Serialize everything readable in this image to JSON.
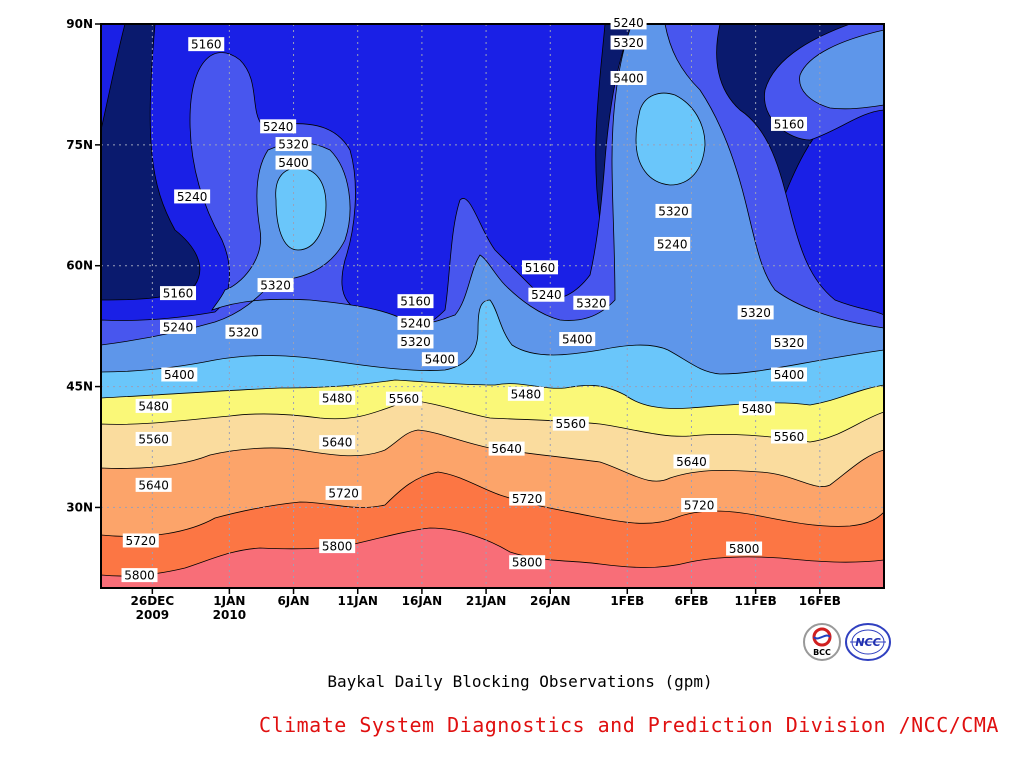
{
  "title": "Baykal Daily Blocking Observations (gpm)",
  "credit": "Climate System Diagnostics and Prediction Division /NCC/CMA",
  "logos": [
    {
      "name": "bcc-logo",
      "text": "BCC"
    },
    {
      "name": "ncc-logo",
      "text": "NCC"
    }
  ],
  "chart_data": {
    "type": "contour",
    "title": "Baykal Daily Blocking Observations (gpm)",
    "xlabel": "",
    "ylabel": "",
    "x_range_days": [
      0,
      61
    ],
    "y_range_lat": [
      20,
      90
    ],
    "grid": true,
    "x_ticks": [
      {
        "label": "26DEC",
        "sub": "2009",
        "day": 4
      },
      {
        "label": "1JAN",
        "sub": "2010",
        "day": 10
      },
      {
        "label": "6JAN",
        "sub": "",
        "day": 15
      },
      {
        "label": "11JAN",
        "sub": "",
        "day": 20
      },
      {
        "label": "16JAN",
        "sub": "",
        "day": 25
      },
      {
        "label": "21JAN",
        "sub": "",
        "day": 30
      },
      {
        "label": "26JAN",
        "sub": "",
        "day": 35
      },
      {
        "label": "1FEB",
        "sub": "",
        "day": 41
      },
      {
        "label": "6FEB",
        "sub": "",
        "day": 46
      },
      {
        "label": "11FEB",
        "sub": "",
        "day": 51
      },
      {
        "label": "16FEB",
        "sub": "",
        "day": 56
      }
    ],
    "y_ticks": [
      {
        "label": "30N",
        "lat": 30
      },
      {
        "label": "45N",
        "lat": 45
      },
      {
        "label": "60N",
        "lat": 60
      },
      {
        "label": "75N",
        "lat": 75
      },
      {
        "label": "90N",
        "lat": 90
      }
    ],
    "levels": [
      5160,
      5240,
      5320,
      5400,
      5480,
      5560,
      5640,
      5720,
      5800
    ],
    "colors": [
      "#0a1a6e",
      "#1a20e6",
      "#4856ee",
      "#5e96ea",
      "#6ac6fa",
      "#faf878",
      "#fadc9e",
      "#fca46a",
      "#fc7644",
      "#f86e78"
    ],
    "labels": [
      {
        "text": "5160",
        "day": 8.2,
        "lat": 87.5
      },
      {
        "text": "5240",
        "day": 13.8,
        "lat": 77.3
      },
      {
        "text": "5320",
        "day": 15,
        "lat": 75.1
      },
      {
        "text": "5400",
        "day": 15,
        "lat": 72.8
      },
      {
        "text": "5240",
        "day": 7.1,
        "lat": 68.6
      },
      {
        "text": "5320",
        "day": 13.6,
        "lat": 57.6
      },
      {
        "text": "5160",
        "day": 6,
        "lat": 56.6
      },
      {
        "text": "5240",
        "day": 6,
        "lat": 52.4
      },
      {
        "text": "5320",
        "day": 11.1,
        "lat": 51.8
      },
      {
        "text": "5400",
        "day": 6.1,
        "lat": 46.5
      },
      {
        "text": "5480",
        "day": 4.1,
        "lat": 42.6
      },
      {
        "text": "5560",
        "day": 4.1,
        "lat": 38.5
      },
      {
        "text": "5640",
        "day": 4.1,
        "lat": 32.8
      },
      {
        "text": "5720",
        "day": 3.1,
        "lat": 25.9
      },
      {
        "text": "5800",
        "day": 3,
        "lat": 21.6
      },
      {
        "text": "5160",
        "day": 24.5,
        "lat": 55.6
      },
      {
        "text": "5240",
        "day": 24.5,
        "lat": 52.9
      },
      {
        "text": "5320",
        "day": 24.5,
        "lat": 50.6
      },
      {
        "text": "5400",
        "day": 26.4,
        "lat": 48.4
      },
      {
        "text": "5480",
        "day": 18.4,
        "lat": 43.6
      },
      {
        "text": "5560",
        "day": 23.6,
        "lat": 43.5
      },
      {
        "text": "5640",
        "day": 18.4,
        "lat": 38.1
      },
      {
        "text": "5720",
        "day": 18.9,
        "lat": 31.8
      },
      {
        "text": "5800",
        "day": 18.4,
        "lat": 25.2
      },
      {
        "text": "5160",
        "day": 34.2,
        "lat": 59.8
      },
      {
        "text": "5240",
        "day": 34.7,
        "lat": 56.4
      },
      {
        "text": "5320",
        "day": 38.2,
        "lat": 55.4
      },
      {
        "text": "5400",
        "day": 37.1,
        "lat": 50.9
      },
      {
        "text": "5480",
        "day": 33.1,
        "lat": 44.1
      },
      {
        "text": "5560",
        "day": 36.6,
        "lat": 40.4
      },
      {
        "text": "5640",
        "day": 31.6,
        "lat": 37.3
      },
      {
        "text": "5720",
        "day": 33.2,
        "lat": 31.1
      },
      {
        "text": "5800",
        "day": 33.2,
        "lat": 23.2
      },
      {
        "text": "5240",
        "day": 41.1,
        "lat": 90.2
      },
      {
        "text": "5320",
        "day": 41.1,
        "lat": 87.7
      },
      {
        "text": "5400",
        "day": 41.1,
        "lat": 83.3
      },
      {
        "text": "5320",
        "day": 44.6,
        "lat": 66.8
      },
      {
        "text": "5240",
        "day": 44.5,
        "lat": 62.7
      },
      {
        "text": "5640",
        "day": 46,
        "lat": 35.7
      },
      {
        "text": "5720",
        "day": 46.6,
        "lat": 30.3
      },
      {
        "text": "5800",
        "day": 50.1,
        "lat": 24.9
      },
      {
        "text": "5160",
        "day": 53.6,
        "lat": 77.6
      },
      {
        "text": "5320",
        "day": 51,
        "lat": 54.2
      },
      {
        "text": "5320",
        "day": 53.6,
        "lat": 50.5
      },
      {
        "text": "5400",
        "day": 53.6,
        "lat": 46.5
      },
      {
        "text": "5480",
        "day": 51.1,
        "lat": 42.3
      },
      {
        "text": "5560",
        "day": 53.6,
        "lat": 38.8
      }
    ]
  }
}
